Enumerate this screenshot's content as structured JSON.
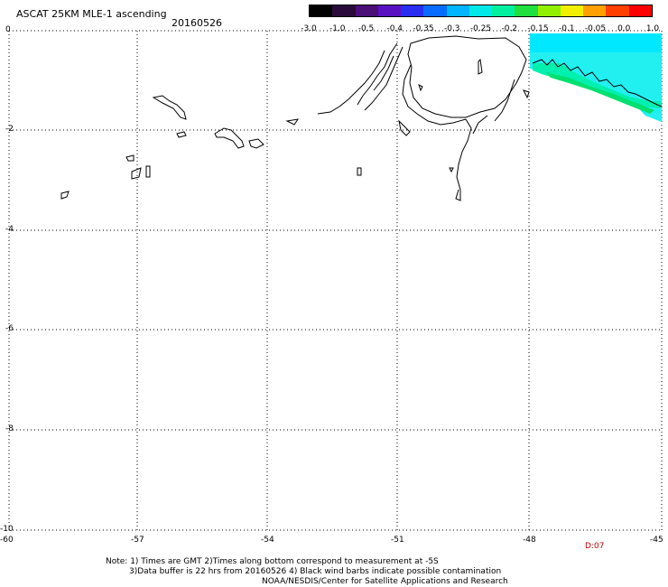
{
  "header": {
    "title": "ASCAT 25KM MLE-1 ascending",
    "date": "20160526"
  },
  "scale": {
    "labels": [
      "-3.0",
      "-1.0",
      "-0.5",
      "-0.4",
      "-0.35",
      "-0.3",
      "-0.25",
      "-0.2",
      "-0.15",
      "-0.1",
      "-0.05",
      "0.0",
      "1.0"
    ],
    "colors": [
      "#000000",
      "#2a0a3a",
      "#4b0f78",
      "#5a12c0",
      "#2a2ef0",
      "#0a6cff",
      "#00b4ff",
      "#00e8e8",
      "#00f0a0",
      "#20e040",
      "#90f000",
      "#f0f000",
      "#ffa000",
      "#ff4000",
      "#ff0000"
    ]
  },
  "axes": {
    "y_labels": [
      "0",
      "-2",
      "-4",
      "-6",
      "-8",
      "-10"
    ],
    "x_labels": [
      "-60",
      "-57",
      "-54",
      "-51",
      "-48",
      "-45"
    ]
  },
  "data_label": "D:07",
  "notes": {
    "line1": "Note: 1) Times are GMT 2)Times along bottom correspond to measurement at -5S",
    "line2": "3)Data buffer is 22 hrs from 20160526 4) Black wind barbs indicate possible contamination",
    "line3": "NOAA/NESDIS/Center for Satellite Applications and Research"
  }
}
